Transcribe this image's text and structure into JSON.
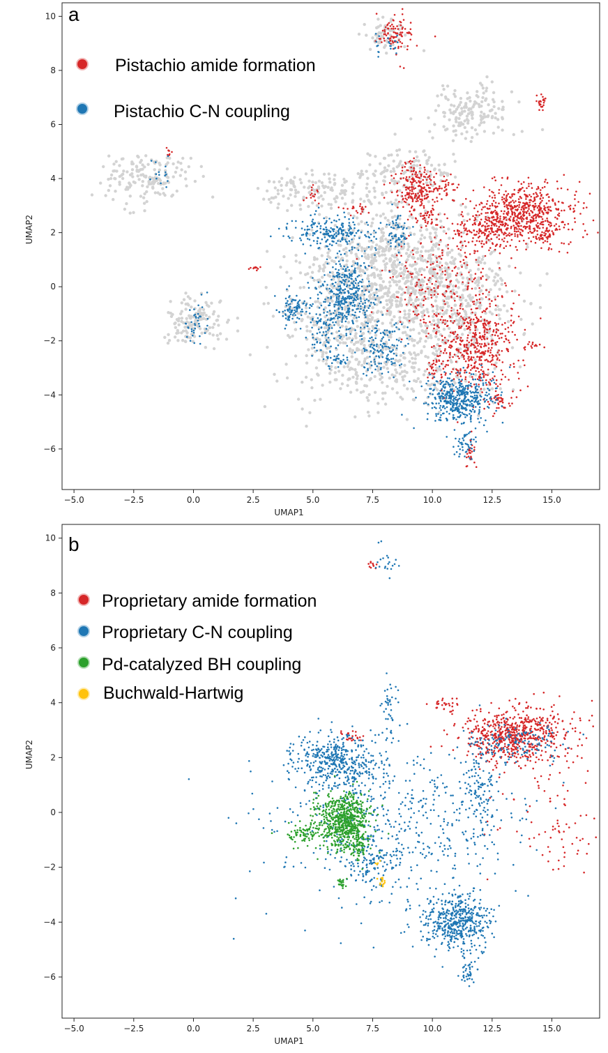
{
  "chart_data": [
    {
      "type": "scatter",
      "panel": "a",
      "xlabel": "UMAP1",
      "ylabel": "UMAP2",
      "xlim": [
        -5.5,
        17
      ],
      "ylim": [
        -7.5,
        10.5
      ],
      "xticks": [
        "−5.0",
        "−2.5",
        "0.0",
        "2.5",
        "5.0",
        "7.5",
        "10.0",
        "12.5",
        "15.0"
      ],
      "xtick_values": [
        -5,
        -2.5,
        0,
        2.5,
        5,
        7.5,
        10,
        12.5,
        15
      ],
      "yticks": [
        "10",
        "8",
        "6",
        "4",
        "2",
        "0",
        "−2",
        "−4",
        "−6"
      ],
      "ytick_values": [
        10,
        8,
        6,
        4,
        2,
        0,
        -2,
        -4,
        -6
      ],
      "grid": false,
      "legend_position": "top-left",
      "background_color": "#d3d3d3",
      "background_clusters": [
        {
          "x": -2.0,
          "y": 4.0,
          "sx": 0.9,
          "sy": 0.45,
          "n": 160
        },
        {
          "x": 0.0,
          "y": -1.3,
          "sx": 0.6,
          "sy": 0.45,
          "n": 140
        },
        {
          "x": 11.8,
          "y": 6.5,
          "sx": 0.9,
          "sy": 0.5,
          "n": 160
        },
        {
          "x": 8.2,
          "y": 0.6,
          "sx": 1.8,
          "sy": 1.4,
          "n": 700
        },
        {
          "x": 10.5,
          "y": -0.5,
          "sx": 1.6,
          "sy": 1.2,
          "n": 450
        },
        {
          "x": 6.5,
          "y": -1.5,
          "sx": 1.5,
          "sy": 1.2,
          "n": 350
        },
        {
          "x": 5.0,
          "y": 3.6,
          "sx": 1.1,
          "sy": 0.35,
          "n": 120
        },
        {
          "x": 8.0,
          "y": 9.3,
          "sx": 0.5,
          "sy": 0.3,
          "n": 60
        },
        {
          "x": 9.0,
          "y": 4.3,
          "sx": 1.0,
          "sy": 0.5,
          "n": 120
        },
        {
          "x": 9.0,
          "y": -3.3,
          "sx": 1.5,
          "sy": 0.6,
          "n": 150
        }
      ],
      "series": [
        {
          "name": "Pistachio amide formation",
          "color": "#d62728",
          "clusters": [
            {
              "x": 13.8,
              "y": 2.7,
              "sx": 1.1,
              "sy": 0.55,
              "n": 600
            },
            {
              "x": 12.2,
              "y": 2.0,
              "sx": 0.6,
              "sy": 0.4,
              "n": 160
            },
            {
              "x": 11.8,
              "y": -2.2,
              "sx": 0.9,
              "sy": 0.85,
              "n": 520
            },
            {
              "x": 9.3,
              "y": 3.7,
              "sx": 0.5,
              "sy": 0.5,
              "n": 220
            },
            {
              "x": 10.5,
              "y": 0.2,
              "sx": 1.3,
              "sy": 0.9,
              "n": 220
            },
            {
              "x": 8.5,
              "y": 9.3,
              "sx": 0.35,
              "sy": 0.35,
              "n": 90
            },
            {
              "x": 14.5,
              "y": 6.8,
              "sx": 0.12,
              "sy": 0.18,
              "n": 24
            },
            {
              "x": 12.8,
              "y": -4.2,
              "sx": 0.25,
              "sy": 0.2,
              "n": 30
            },
            {
              "x": 9.8,
              "y": 2.6,
              "sx": 0.3,
              "sy": 0.2,
              "n": 40
            },
            {
              "x": 10.5,
              "y": 3.7,
              "sx": 0.3,
              "sy": 0.12,
              "n": 30
            },
            {
              "x": 11.6,
              "y": -6.1,
              "sx": 0.12,
              "sy": 0.25,
              "n": 25
            },
            {
              "x": 5.0,
              "y": 3.4,
              "sx": 0.15,
              "sy": 0.15,
              "n": 15
            },
            {
              "x": 2.7,
              "y": 0.7,
              "sx": 0.15,
              "sy": 0.05,
              "n": 10
            },
            {
              "x": 6.8,
              "y": 2.9,
              "sx": 0.4,
              "sy": 0.1,
              "n": 20
            },
            {
              "x": 10.1,
              "y": -3.0,
              "sx": 0.15,
              "sy": 0.2,
              "n": 20
            },
            {
              "x": 14.2,
              "y": -2.2,
              "sx": 0.2,
              "sy": 0.08,
              "n": 12
            },
            {
              "x": -1.0,
              "y": 5.0,
              "sx": 0.08,
              "sy": 0.12,
              "n": 8
            },
            {
              "x": 14.8,
              "y": 1.9,
              "sx": 0.2,
              "sy": 0.15,
              "n": 25
            }
          ]
        },
        {
          "name": "Pistachio C-N coupling",
          "color": "#1f77b4",
          "clusters": [
            {
              "x": 11.2,
              "y": -4.1,
              "sx": 0.7,
              "sy": 0.45,
              "n": 450
            },
            {
              "x": 6.4,
              "y": -0.3,
              "sx": 0.55,
              "sy": 0.7,
              "n": 380
            },
            {
              "x": 5.8,
              "y": 2.0,
              "sx": 0.9,
              "sy": 0.3,
              "n": 220
            },
            {
              "x": 7.9,
              "y": -2.2,
              "sx": 0.5,
              "sy": 0.5,
              "n": 140
            },
            {
              "x": 4.2,
              "y": -0.8,
              "sx": 0.35,
              "sy": 0.3,
              "n": 90
            },
            {
              "x": 11.4,
              "y": -5.8,
              "sx": 0.2,
              "sy": 0.25,
              "n": 45
            },
            {
              "x": 0.1,
              "y": -1.4,
              "sx": 0.3,
              "sy": 0.4,
              "n": 40
            },
            {
              "x": 8.6,
              "y": 1.9,
              "sx": 0.25,
              "sy": 0.35,
              "n": 60
            },
            {
              "x": 5.5,
              "y": -1.6,
              "sx": 0.5,
              "sy": 0.5,
              "n": 80
            },
            {
              "x": 8.0,
              "y": 9.0,
              "sx": 0.4,
              "sy": 0.2,
              "n": 20
            },
            {
              "x": -1.5,
              "y": 4.2,
              "sx": 0.3,
              "sy": 0.25,
              "n": 15
            },
            {
              "x": 6.0,
              "y": -2.7,
              "sx": 0.3,
              "sy": 0.15,
              "n": 30
            }
          ]
        }
      ]
    },
    {
      "type": "scatter",
      "panel": "b",
      "xlabel": "UMAP1",
      "ylabel": "UMAP2",
      "xlim": [
        -5.5,
        17
      ],
      "ylim": [
        -7.5,
        10.5
      ],
      "xticks": [
        "−5.0",
        "−2.5",
        "0.0",
        "2.5",
        "5.0",
        "7.5",
        "10.0",
        "12.5",
        "15.0"
      ],
      "xtick_values": [
        -5,
        -2.5,
        0,
        2.5,
        5,
        7.5,
        10,
        12.5,
        15
      ],
      "yticks": [
        "10",
        "8",
        "6",
        "4",
        "2",
        "0",
        "−2",
        "−4",
        "−6"
      ],
      "ytick_values": [
        10,
        8,
        6,
        4,
        2,
        0,
        -2,
        -4,
        -6
      ],
      "grid": false,
      "legend_position": "top-left",
      "series": [
        {
          "name": "Proprietary amide formation",
          "color": "#d62728",
          "clusters": [
            {
              "x": 13.5,
              "y": 2.8,
              "sx": 1.1,
              "sy": 0.5,
              "n": 650
            },
            {
              "x": 14.6,
              "y": 0.3,
              "sx": 1.2,
              "sy": 1.0,
              "n": 60
            },
            {
              "x": 10.5,
              "y": 3.9,
              "sx": 0.4,
              "sy": 0.12,
              "n": 30
            },
            {
              "x": 6.6,
              "y": 2.8,
              "sx": 0.15,
              "sy": 0.12,
              "n": 25
            },
            {
              "x": 7.5,
              "y": 9.0,
              "sx": 0.15,
              "sy": 0.1,
              "n": 10
            },
            {
              "x": 16.0,
              "y": -1.2,
              "sx": 0.6,
              "sy": 0.5,
              "n": 25
            }
          ]
        },
        {
          "name": "Proprietary C-N coupling",
          "color": "#1f77b4",
          "clusters": [
            {
              "x": 6.0,
              "y": 1.8,
              "sx": 0.9,
              "sy": 0.5,
              "n": 420
            },
            {
              "x": 11.0,
              "y": -4.0,
              "sx": 0.7,
              "sy": 0.5,
              "n": 480
            },
            {
              "x": 8.5,
              "y": -0.5,
              "sx": 2.5,
              "sy": 1.4,
              "n": 550
            },
            {
              "x": 12.0,
              "y": 1.0,
              "sx": 0.35,
              "sy": 0.9,
              "n": 120
            },
            {
              "x": 11.5,
              "y": -5.8,
              "sx": 0.2,
              "sy": 0.25,
              "n": 40
            },
            {
              "x": 8.2,
              "y": 3.8,
              "sx": 0.2,
              "sy": 0.7,
              "n": 40
            },
            {
              "x": 8.0,
              "y": 9.1,
              "sx": 0.3,
              "sy": 0.25,
              "n": 20
            },
            {
              "x": 13.5,
              "y": 2.5,
              "sx": 0.9,
              "sy": 0.4,
              "n": 120
            },
            {
              "x": 7.5,
              "y": -2.0,
              "sx": 0.5,
              "sy": 0.4,
              "n": 80
            }
          ]
        },
        {
          "name": "Pd-catalyzed BH coupling",
          "color": "#2ca02c",
          "clusters": [
            {
              "x": 6.3,
              "y": -0.3,
              "sx": 0.55,
              "sy": 0.5,
              "n": 650
            },
            {
              "x": 4.6,
              "y": -0.8,
              "sx": 0.4,
              "sy": 0.2,
              "n": 70
            },
            {
              "x": 6.9,
              "y": -1.2,
              "sx": 0.2,
              "sy": 0.3,
              "n": 60
            },
            {
              "x": 6.2,
              "y": -2.6,
              "sx": 0.1,
              "sy": 0.1,
              "n": 20
            }
          ]
        },
        {
          "name": "Buchwald-Hartwig",
          "color": "#ffc20a",
          "clusters": [
            {
              "x": 7.9,
              "y": -2.5,
              "sx": 0.08,
              "sy": 0.1,
              "n": 14
            },
            {
              "x": 7.7,
              "y": -1.8,
              "sx": 0.05,
              "sy": 0.05,
              "n": 4
            }
          ]
        }
      ]
    }
  ]
}
